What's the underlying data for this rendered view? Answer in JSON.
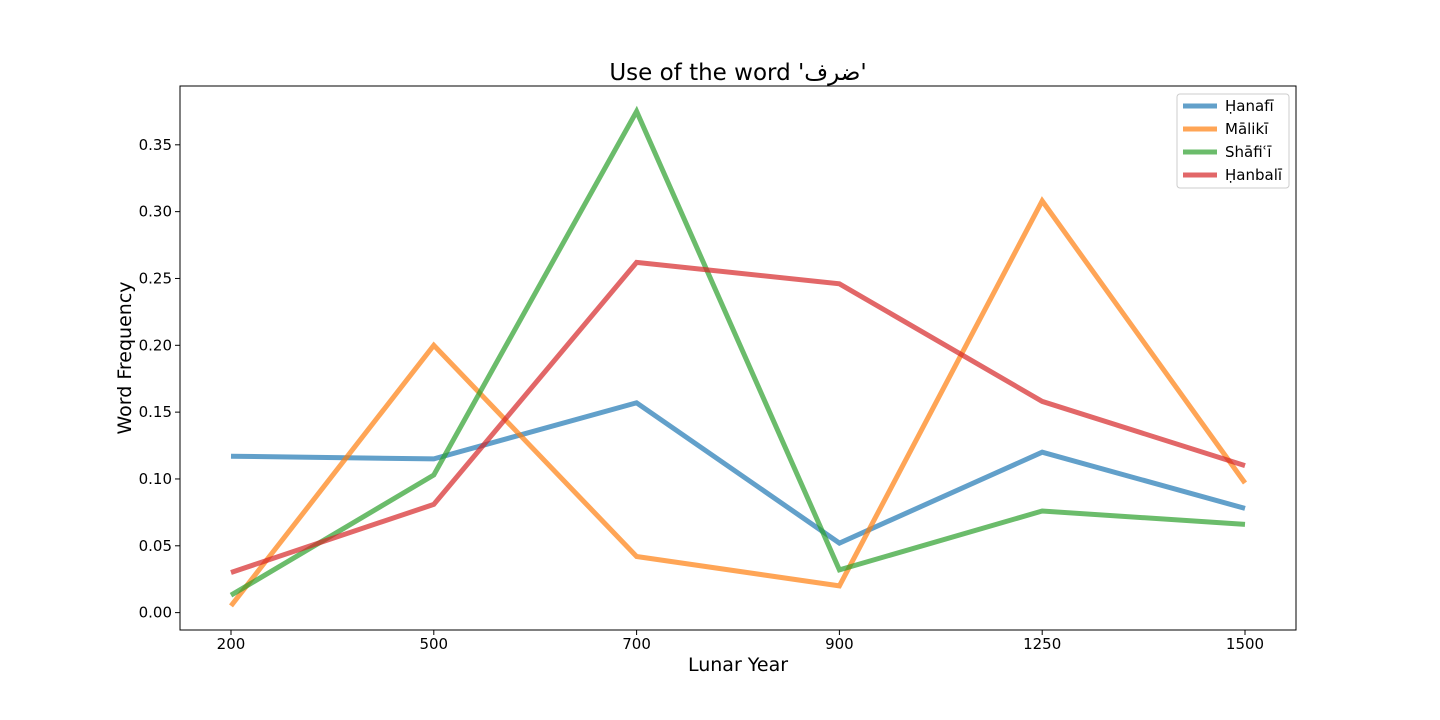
{
  "chart_data": {
    "type": "line",
    "title": "Use of the word 'ضرف'",
    "xlabel": "Lunar Year",
    "ylabel": "Word Frequency",
    "categories": [
      "200",
      "500",
      "700",
      "900",
      "1250",
      "1500"
    ],
    "ylim": [
      -0.013,
      0.394
    ],
    "yticks": [
      0.0,
      0.05,
      0.1,
      0.15,
      0.2,
      0.25,
      0.3,
      0.35
    ],
    "ytick_labels": [
      "0.00",
      "0.05",
      "0.10",
      "0.15",
      "0.20",
      "0.25",
      "0.30",
      "0.35"
    ],
    "grid": false,
    "legend_position": "top-right",
    "series": [
      {
        "name": "Ḥanafī",
        "color": "#1f77b4",
        "values": [
          0.117,
          0.115,
          0.157,
          0.052,
          0.12,
          0.078
        ]
      },
      {
        "name": "Mālikī",
        "color": "#ff7f0e",
        "values": [
          0.005,
          0.2,
          0.042,
          0.02,
          0.308,
          0.097
        ]
      },
      {
        "name": "Shāfiʿī",
        "color": "#2ca02c",
        "values": [
          0.013,
          0.103,
          0.375,
          0.032,
          0.076,
          0.066
        ]
      },
      {
        "name": "Ḥanbalī",
        "color": "#d62728",
        "values": [
          0.03,
          0.081,
          0.262,
          0.246,
          0.158,
          0.11
        ]
      }
    ]
  }
}
